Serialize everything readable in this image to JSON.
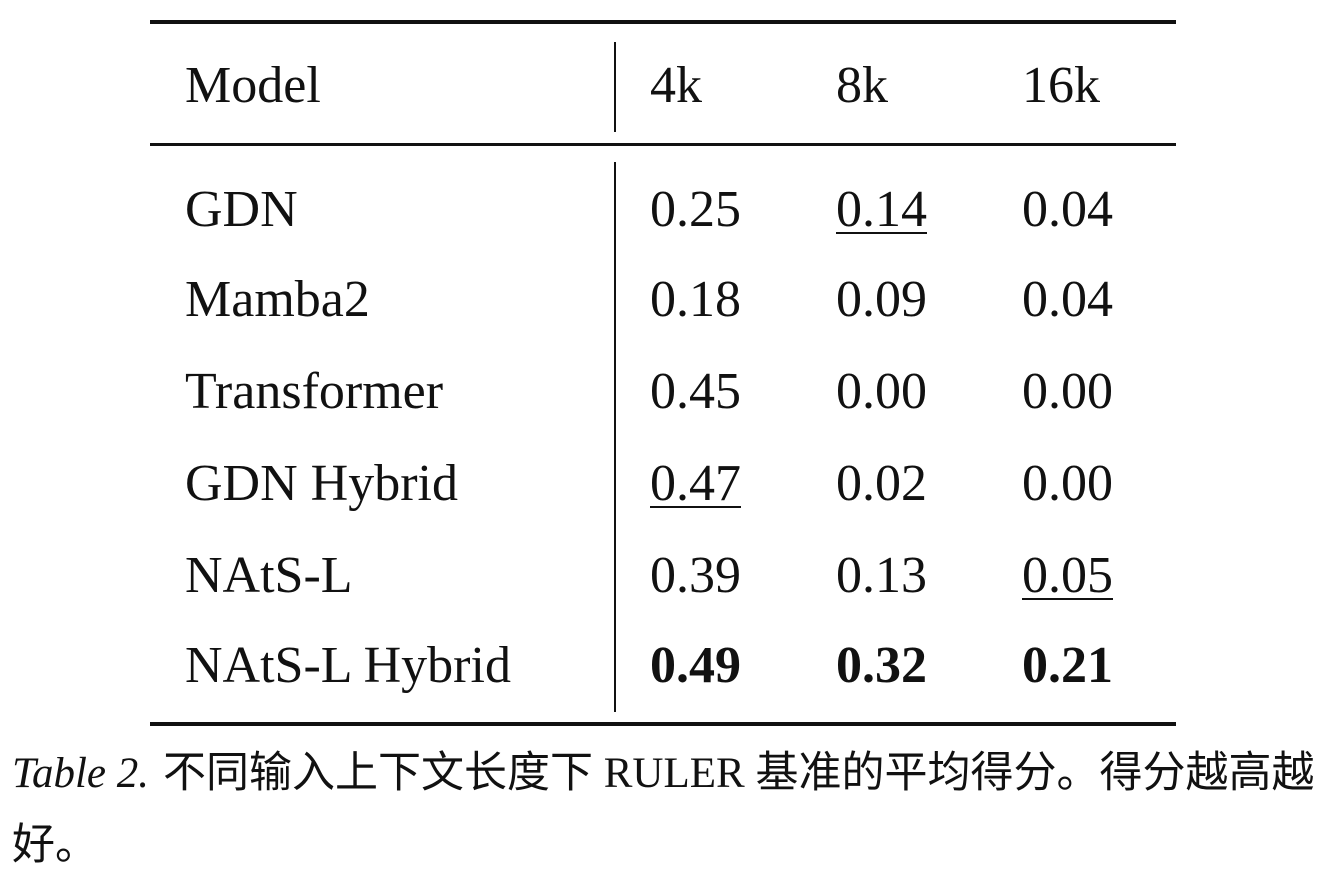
{
  "table": {
    "header": [
      "Model",
      "4k",
      "8k",
      "16k"
    ],
    "rows": [
      [
        "GDN",
        "0.25",
        "0.14",
        "0.04"
      ],
      [
        "Mamba2",
        "0.18",
        "0.09",
        "0.04"
      ],
      [
        "Transformer",
        "0.45",
        "0.00",
        "0.00"
      ],
      [
        "GDN Hybrid",
        "0.47",
        "0.02",
        "0.00"
      ],
      [
        "NAtS-L",
        "0.39",
        "0.13",
        "0.05"
      ],
      [
        "NAtS-L Hybrid",
        "0.49",
        "0.32",
        "0.21"
      ]
    ]
  },
  "caption": {
    "label": "Table 2.",
    "text": "不同输入上下文长度下 RULER 基准的平均得分。得分越高越好。"
  }
}
